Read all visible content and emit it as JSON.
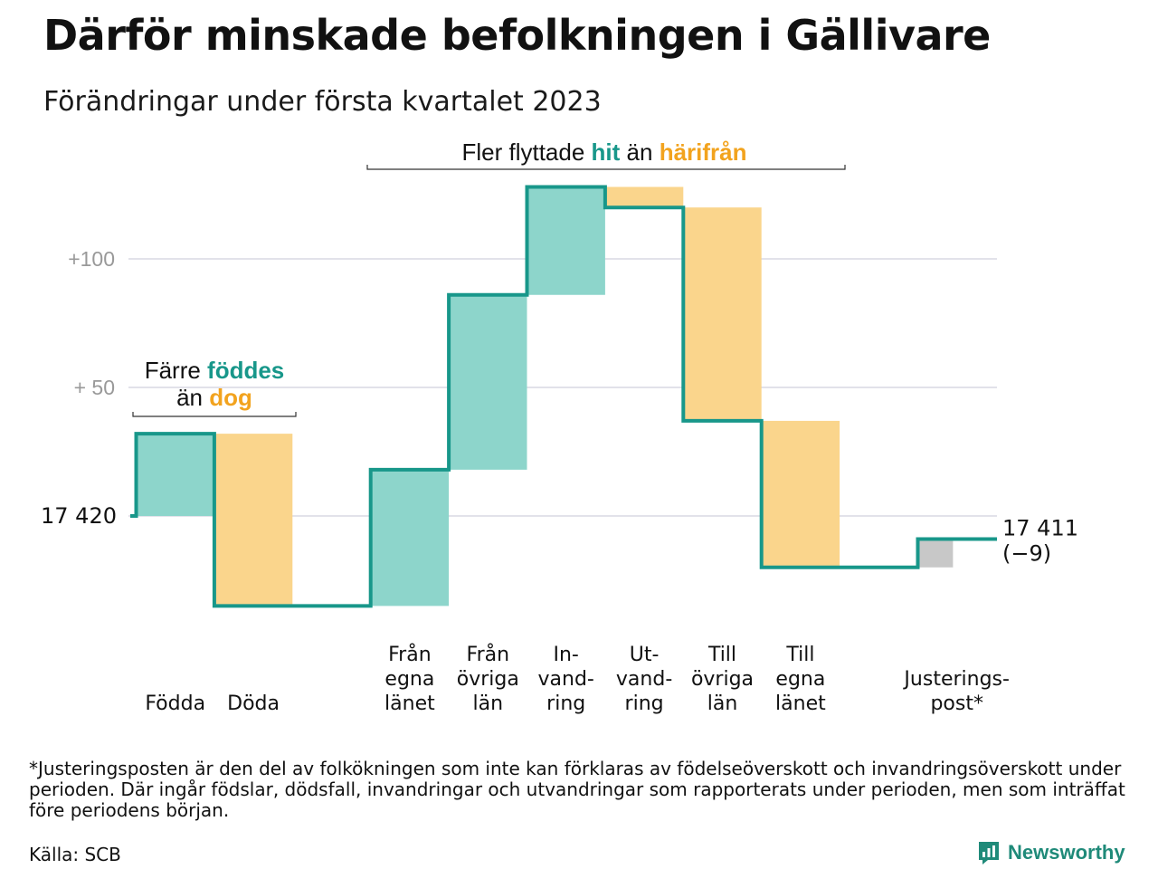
{
  "title": "Därför minskade befolkningen i Gällivare",
  "subtitle": "Förändringar under första kvartalet 2023",
  "chart_data": {
    "type": "bar",
    "subtype": "waterfall",
    "start_value": 17420,
    "start_label": "17 420",
    "end_value": 17411,
    "end_label_lines": [
      "17 411",
      "(−9)"
    ],
    "y_ticks": [
      {
        "value": 100,
        "label": "+100"
      },
      {
        "value": 50,
        "label": "+ 50"
      }
    ],
    "y_range": [
      -35,
      128
    ],
    "grid": true,
    "steps": [
      {
        "label_lines": [
          "Födda"
        ],
        "delta": 32,
        "kind": "increase"
      },
      {
        "label_lines": [
          "Döda"
        ],
        "delta": -67,
        "kind": "decrease"
      },
      {
        "label_lines": [
          ""
        ],
        "delta": 0,
        "kind": "gap"
      },
      {
        "label_lines": [
          "Från",
          "egna",
          "länet"
        ],
        "delta": 53,
        "kind": "increase"
      },
      {
        "label_lines": [
          "Från",
          "övriga",
          "län"
        ],
        "delta": 68,
        "kind": "increase"
      },
      {
        "label_lines": [
          "In-",
          "vand-",
          "ring"
        ],
        "delta": 42,
        "kind": "increase"
      },
      {
        "label_lines": [
          "Ut-",
          "vand-",
          "ring"
        ],
        "delta": -8,
        "kind": "decrease"
      },
      {
        "label_lines": [
          "Till",
          "övriga",
          "län"
        ],
        "delta": -83,
        "kind": "decrease"
      },
      {
        "label_lines": [
          "Till",
          "egna",
          "länet"
        ],
        "delta": -57,
        "kind": "decrease"
      },
      {
        "label_lines": [
          ""
        ],
        "delta": 0,
        "kind": "gap"
      },
      {
        "label_lines": [
          "Justerings-",
          "post*"
        ],
        "delta": 11,
        "kind": "adjustment"
      }
    ],
    "annotations": [
      {
        "id": "births",
        "lines": [
          [
            {
              "text": "Färre ",
              "style": "plain"
            },
            {
              "text": "föddes",
              "style": "teal"
            }
          ],
          [
            {
              "text": "än ",
              "style": "plain"
            },
            {
              "text": "dog",
              "style": "orange"
            }
          ]
        ]
      },
      {
        "id": "migration",
        "lines": [
          [
            {
              "text": "Fler flyttade ",
              "style": "plain"
            },
            {
              "text": "hit",
              "style": "teal"
            },
            {
              "text": " än ",
              "style": "plain"
            },
            {
              "text": "härifrån",
              "style": "orange"
            }
          ]
        ]
      }
    ],
    "colors": {
      "increase": "#8dd5cb",
      "decrease": "#fad58c",
      "adjustment": "#c8c8c8",
      "line": "#18978a",
      "grid": "#e2e2ea",
      "teal_text": "#18978a",
      "orange_text": "#f2a31e"
    }
  },
  "footnote": "*Justeringsposten är den del av folkökningen som inte kan förklaras av födelseöverskott och invandringsöverskott under perioden. Där ingår födslar, dödsfall, invandringar och utvandringar som rapporterats under perioden, men som inträffat före periodens början.",
  "source": "Källa: SCB",
  "brand": {
    "name": "Newsworthy",
    "icon": "newsworthy-logo-icon"
  }
}
